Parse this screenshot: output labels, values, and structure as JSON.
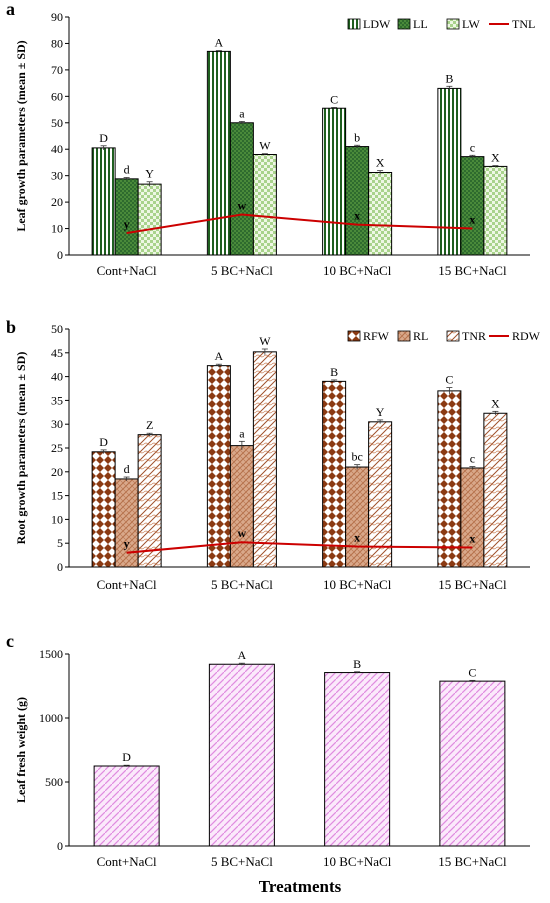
{
  "x_title": "Treatments",
  "chart_data": [
    {
      "panel_label": "a",
      "type": "bar",
      "ylabel": "Leaf growth parameters (mean ± SD)",
      "ylim": [
        0,
        90
      ],
      "yticks": [
        0,
        10,
        20,
        30,
        40,
        50,
        60,
        70,
        80,
        90
      ],
      "categories": [
        "Cont+NaCl",
        "5 BC+NaCl",
        "10 BC+NaCl",
        "15 BC+NaCl"
      ],
      "legend_position": "top-right",
      "series": [
        {
          "name": "LDW",
          "pattern": "vstripes",
          "values": [
            40.5,
            77.0,
            55.5,
            63.0
          ],
          "errors": [
            0.8,
            0.3,
            0.3,
            0.8
          ],
          "labels": [
            "D",
            "A",
            "C",
            "B"
          ]
        },
        {
          "name": "LL",
          "pattern": "darkgreen",
          "values": [
            28.8,
            50.0,
            41.0,
            37.2
          ],
          "errors": [
            0.5,
            0.5,
            0.5,
            0.5
          ],
          "labels": [
            "d",
            "a",
            "b",
            "c"
          ]
        },
        {
          "name": "LW",
          "pattern": "lightcheck",
          "values": [
            26.8,
            38.0,
            31.2,
            33.5
          ],
          "errors": [
            0.9,
            0.3,
            0.7,
            0.3
          ],
          "labels": [
            "Y",
            "W",
            "X",
            "X"
          ]
        }
      ],
      "line": {
        "name": "TNL",
        "color": "#cc0000",
        "values": [
          8.3,
          15.3,
          11.5,
          10.0
        ],
        "labels": [
          "y",
          "w",
          "x",
          "x"
        ]
      }
    },
    {
      "panel_label": "b",
      "type": "bar",
      "ylabel": "Root growth parameters (mean ± SD)",
      "ylim": [
        0,
        50
      ],
      "yticks": [
        0,
        5,
        10,
        15,
        20,
        25,
        30,
        35,
        40,
        45,
        50
      ],
      "categories": [
        "Cont+NaCl",
        "5 BC+NaCl",
        "10 BC+NaCl",
        "15 BC+NaCl"
      ],
      "legend_position": "top-right",
      "series": [
        {
          "name": "RFW",
          "pattern": "diamonds",
          "values": [
            24.2,
            42.3,
            39.0,
            37.0
          ],
          "errors": [
            0.4,
            0.3,
            0.3,
            0.7
          ],
          "labels": [
            "D",
            "A",
            "B",
            "C"
          ]
        },
        {
          "name": "RL",
          "pattern": "tanweave",
          "values": [
            18.5,
            25.5,
            21.0,
            20.8
          ],
          "errors": [
            0.4,
            0.9,
            0.5,
            0.3
          ],
          "labels": [
            "d",
            "a",
            "bc",
            "c"
          ]
        },
        {
          "name": "TNR",
          "pattern": "waves",
          "values": [
            27.8,
            45.2,
            30.5,
            32.3
          ],
          "errors": [
            0.3,
            0.6,
            0.4,
            0.4
          ],
          "labels": [
            "Z",
            "W",
            "Y",
            "X"
          ]
        }
      ],
      "line": {
        "name": "RDW",
        "color": "#cc0000",
        "values": [
          3.0,
          5.2,
          4.3,
          4.1
        ],
        "labels": [
          "y",
          "w",
          "x",
          "x"
        ]
      }
    },
    {
      "panel_label": "c",
      "type": "bar",
      "ylabel": "Leaf fresh weight (g)",
      "ylim": [
        0,
        1500
      ],
      "yticks": [
        0,
        500,
        1000,
        1500
      ],
      "categories": [
        "Cont+NaCl",
        "5 BC+NaCl",
        "10 BC+NaCl",
        "15 BC+NaCl"
      ],
      "series": [
        {
          "name": "",
          "pattern": "pinkdiag",
          "values": [
            625,
            1420,
            1355,
            1288
          ],
          "errors": [
            6,
            8,
            6,
            6
          ],
          "labels": [
            "D",
            "A",
            "B",
            "C"
          ]
        }
      ]
    }
  ]
}
